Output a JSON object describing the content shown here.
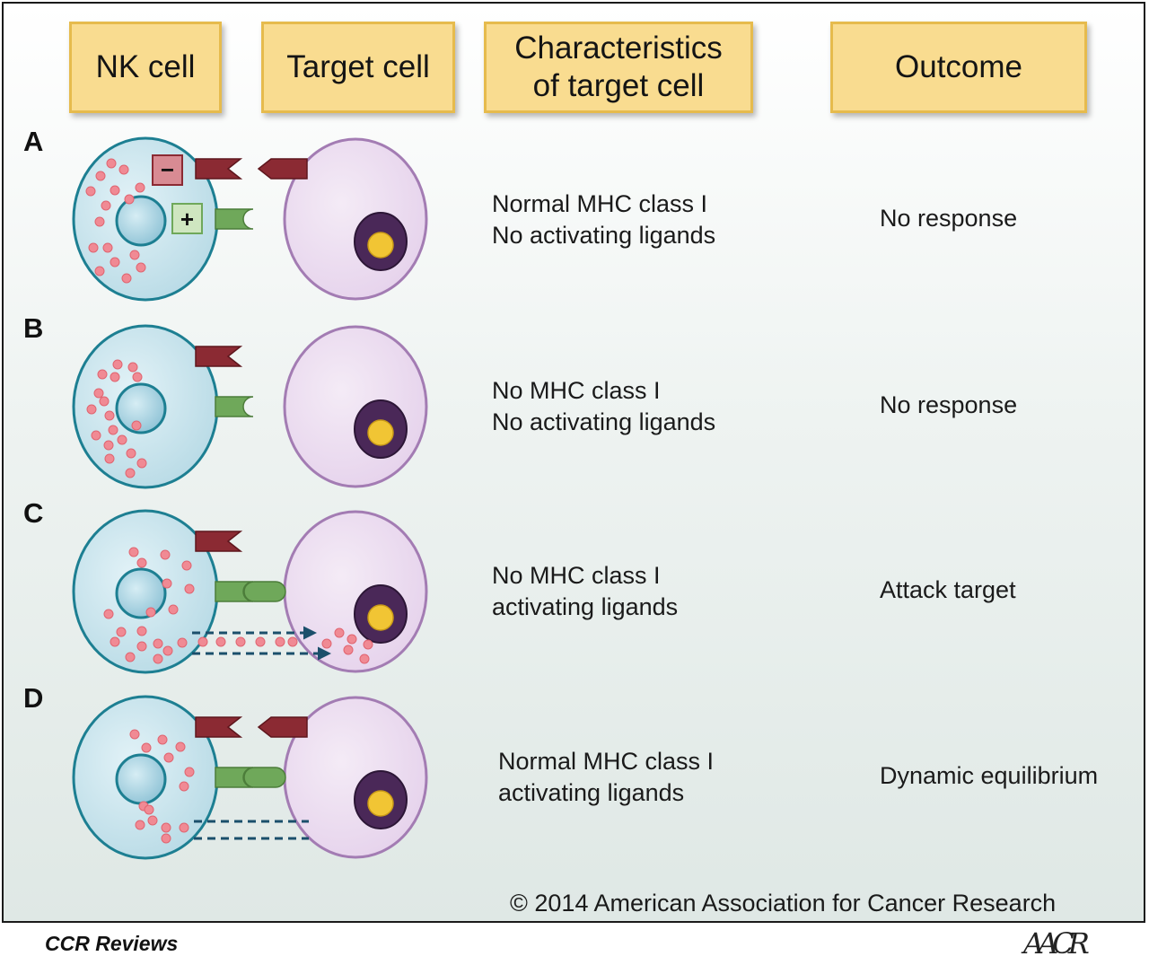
{
  "headers": {
    "nk_cell": "NK cell",
    "target_cell": "Target cell",
    "characteristics_line1": "Characteristics",
    "characteristics_line2": "of target cell",
    "outcome": "Outcome"
  },
  "rows": [
    {
      "letter": "A",
      "char_line1": "Normal MHC class I",
      "char_line2": "No activating ligands",
      "outcome": "No response"
    },
    {
      "letter": "B",
      "char_line1": "No MHC class I",
      "char_line2": "No activating ligands",
      "outcome": "No response"
    },
    {
      "letter": "C",
      "char_line1": "No MHC class I",
      "char_line2": "activating ligands",
      "outcome": "Attack target"
    },
    {
      "letter": "D",
      "char_line1": "Normal MHC class I",
      "char_line2": "activating ligands",
      "outcome": "Dynamic equilibrium"
    }
  ],
  "legend_symbols": {
    "inhibitory": "−",
    "activating": "+"
  },
  "copyright": "© 2014 American Association for Cancer Research",
  "footer": {
    "journal": "CCR Reviews",
    "logo": "AACR"
  },
  "colors": {
    "header_fill": "#f9dc90",
    "header_border": "#e6bb4d",
    "nk_cell_fill": "#b9dbe6",
    "nk_cell_border": "#1d7f92",
    "target_cell_fill": "#e6d3ec",
    "target_cell_border": "#a37cb3",
    "granule": "#f08a94",
    "inhibitory_receptor": "#8b2a33",
    "activating_receptor": "#6fa85a",
    "nucleus_target": "#4a2858",
    "nucleus_core": "#f1c534",
    "arrow": "#1b4f6b"
  }
}
